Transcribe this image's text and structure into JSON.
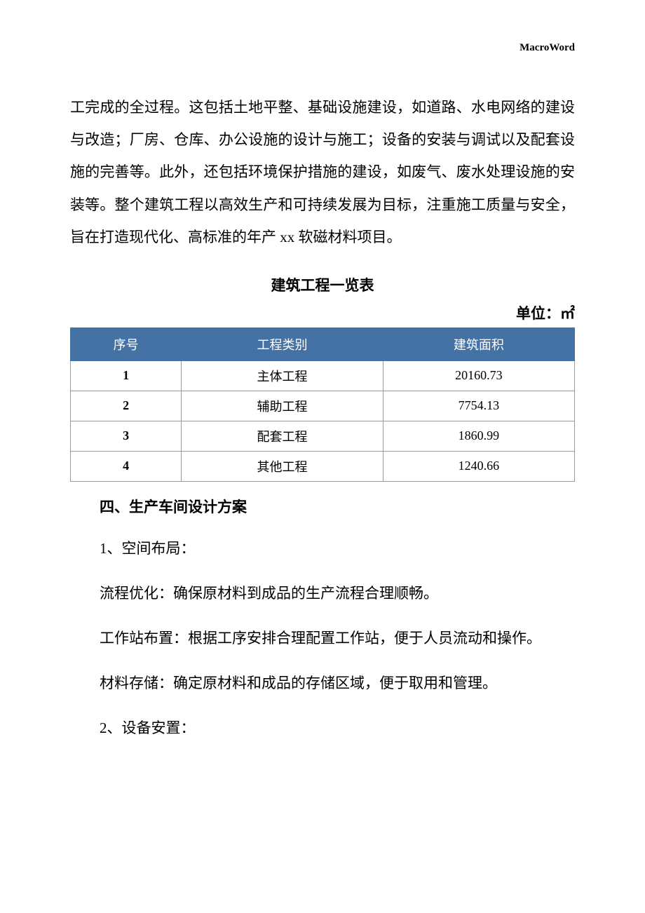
{
  "header": {
    "brand": "MacroWord"
  },
  "body_paragraph": "工完成的全过程。这包括土地平整、基础设施建设，如道路、水电网络的建设与改造；厂房、仓库、办公设施的设计与施工；设备的安装与调试以及配套设施的完善等。此外，还包括环境保护措施的建设，如废气、废水处理设施的安装等。整个建筑工程以高效生产和可持续发展为目标，注重施工质量与安全，旨在打造现代化、高标准的年产 xx 软磁材料项目。",
  "table": {
    "title": "建筑工程一览表",
    "unit_label": "单位：㎡",
    "header_bg": "#4472a4",
    "header_color": "#ffffff",
    "border_color": "#999999",
    "columns": [
      "序号",
      "工程类别",
      "建筑面积"
    ],
    "rows": [
      [
        "1",
        "主体工程",
        "20160.73"
      ],
      [
        "2",
        "辅助工程",
        "7754.13"
      ],
      [
        "3",
        "配套工程",
        "1860.99"
      ],
      [
        "4",
        "其他工程",
        "1240.66"
      ]
    ]
  },
  "section": {
    "heading": "四、生产车间设计方案",
    "sub1": "1、空间布局：",
    "para1": "流程优化：确保原材料到成品的生产流程合理顺畅。",
    "para2": "工作站布置：根据工序安排合理配置工作站，便于人员流动和操作。",
    "para3": "材料存储：确定原材料和成品的存储区域，便于取用和管理。",
    "sub2": "2、设备安置："
  }
}
